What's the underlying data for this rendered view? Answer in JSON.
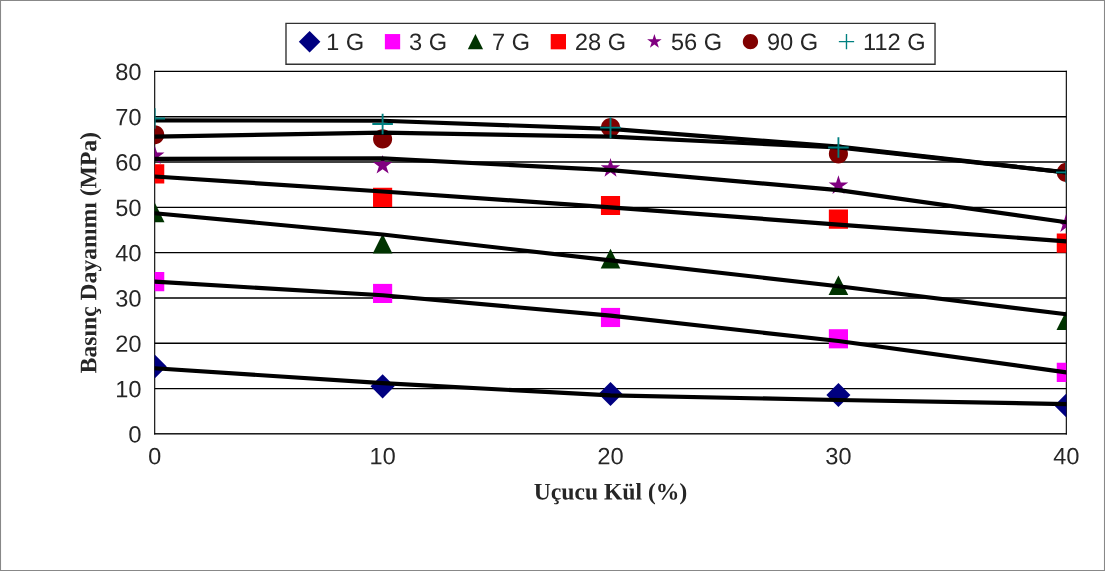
{
  "chart_data": {
    "type": "scatter",
    "xlabel": "Uçucu Kül (%)",
    "ylabel": "Basınç Dayanımı (MPa)",
    "x": [
      0,
      10,
      20,
      30,
      40
    ],
    "xlim": [
      0,
      40
    ],
    "xticks": [
      0,
      10,
      20,
      30,
      40
    ],
    "ylim": [
      0,
      80
    ],
    "yticks": [
      0,
      10,
      20,
      30,
      40,
      50,
      60,
      70,
      80
    ],
    "grid": "y",
    "legend": "top",
    "series": [
      {
        "name": "1 G",
        "marker": "diamond",
        "color": "#000080",
        "values": [
          14.9,
          10.5,
          8.8,
          8.6,
          6.3
        ]
      },
      {
        "name": "3 G",
        "marker": "square",
        "color": "#ff00ff",
        "values": [
          33.6,
          31.0,
          25.7,
          21.0,
          13.6
        ]
      },
      {
        "name": "7 G",
        "marker": "triangle",
        "color": "#003300",
        "values": [
          48.9,
          42.0,
          38.7,
          32.8,
          25.1
        ]
      },
      {
        "name": "28 G",
        "marker": "square",
        "color": "#ff0000",
        "values": [
          57.4,
          52.2,
          50.4,
          47.4,
          42.1
        ]
      },
      {
        "name": "56 G",
        "marker": "star",
        "color": "#800080",
        "values": [
          61.4,
          59.3,
          58.6,
          54.8,
          46.4
        ]
      },
      {
        "name": "90 G",
        "marker": "circle",
        "color": "#800000",
        "values": [
          66.0,
          65.1,
          67.6,
          61.8,
          57.7
        ]
      },
      {
        "name": "112 G",
        "marker": "cross",
        "color": "#008080",
        "values": [
          69.6,
          68.4,
          67.6,
          63.2,
          57.7
        ]
      },
      {
        "type": "line",
        "color": "#000000",
        "values": [
          14.5,
          11.2,
          8.5,
          7.5,
          6.6
        ]
      },
      {
        "type": "line",
        "color": "#000000",
        "values": [
          33.6,
          30.6,
          26.1,
          20.5,
          13.6
        ]
      },
      {
        "type": "line",
        "color": "#000000",
        "values": [
          48.7,
          44.0,
          38.3,
          32.6,
          26.4
        ]
      },
      {
        "type": "line",
        "color": "#000000",
        "values": [
          56.8,
          53.5,
          50.0,
          46.2,
          42.5
        ]
      },
      {
        "type": "line",
        "color": "#000000",
        "values": [
          60.7,
          60.8,
          58.2,
          53.8,
          46.7
        ]
      },
      {
        "type": "line",
        "color": "#000000",
        "values": [
          65.6,
          66.5,
          65.6,
          63.2,
          57.7
        ]
      },
      {
        "type": "line",
        "color": "#000000",
        "values": [
          69.2,
          69.1,
          67.3,
          63.4,
          57.7
        ]
      }
    ]
  }
}
